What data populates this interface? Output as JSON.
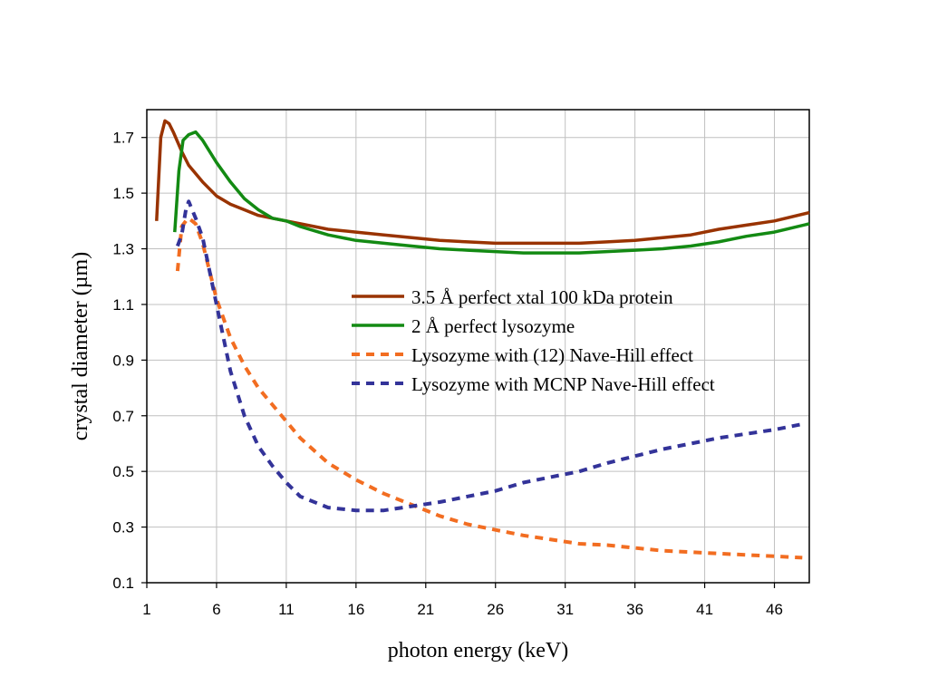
{
  "chart_data": {
    "type": "line",
    "xlabel": "photon energy (keV)",
    "ylabel": "crystal diameter (µm)",
    "xlim": [
      1,
      48.5
    ],
    "ylim": [
      0.1,
      1.8
    ],
    "x_ticks": [
      1,
      6,
      11,
      16,
      21,
      26,
      31,
      36,
      41,
      46
    ],
    "y_ticks": [
      0.1,
      0.3,
      0.5,
      0.7,
      0.9,
      1.1,
      1.3,
      1.5,
      1.7
    ],
    "grid": true,
    "legend_position": "center-right",
    "series": [
      {
        "name": "3.5 Å perfect xtal 100 kDa protein",
        "color": "#993300",
        "style": "solid",
        "x": [
          1.7,
          2.0,
          2.3,
          2.6,
          2.9,
          3.5,
          4.0,
          5.0,
          6.0,
          7.0,
          8.0,
          9.0,
          10.0,
          12.0,
          14.0,
          16.0,
          18.0,
          20.0,
          22.0,
          24.0,
          26.0,
          28.0,
          30.0,
          32.0,
          34.0,
          36.0,
          38.0,
          40.0,
          42.0,
          44.0,
          46.0,
          48.5
        ],
        "y": [
          1.4,
          1.7,
          1.76,
          1.75,
          1.72,
          1.65,
          1.6,
          1.54,
          1.49,
          1.46,
          1.44,
          1.42,
          1.41,
          1.39,
          1.37,
          1.36,
          1.35,
          1.34,
          1.33,
          1.325,
          1.32,
          1.32,
          1.32,
          1.32,
          1.325,
          1.33,
          1.34,
          1.35,
          1.37,
          1.385,
          1.4,
          1.43
        ]
      },
      {
        "name": "2 Å perfect lysozyme",
        "color": "#138a13",
        "style": "solid",
        "x": [
          3.0,
          3.3,
          3.6,
          4.0,
          4.5,
          5.0,
          6.0,
          7.0,
          8.0,
          9.0,
          10.0,
          11.0,
          12.0,
          14.0,
          16.0,
          18.0,
          20.0,
          22.0,
          24.0,
          26.0,
          28.0,
          30.0,
          32.0,
          34.0,
          36.0,
          38.0,
          40.0,
          42.0,
          44.0,
          46.0,
          48.5
        ],
        "y": [
          1.36,
          1.58,
          1.69,
          1.71,
          1.72,
          1.69,
          1.61,
          1.54,
          1.48,
          1.44,
          1.41,
          1.4,
          1.38,
          1.35,
          1.33,
          1.32,
          1.31,
          1.3,
          1.295,
          1.29,
          1.285,
          1.285,
          1.285,
          1.29,
          1.295,
          1.3,
          1.31,
          1.325,
          1.345,
          1.36,
          1.39
        ]
      },
      {
        "name": "Lysozyme with (12) Nave-Hill effect",
        "color": "#f26d21",
        "style": "dashed",
        "x": [
          3.2,
          3.5,
          3.8,
          4.0,
          4.5,
          5.0,
          6.0,
          7.0,
          8.0,
          9.0,
          10.0,
          12.0,
          14.0,
          16.0,
          18.0,
          20.0,
          22.0,
          24.0,
          26.0,
          28.0,
          30.0,
          32.0,
          34.0,
          36.0,
          38.0,
          40.0,
          42.0,
          44.0,
          46.0,
          48.0
        ],
        "y": [
          1.22,
          1.38,
          1.4,
          1.41,
          1.39,
          1.32,
          1.12,
          0.98,
          0.88,
          0.8,
          0.74,
          0.62,
          0.53,
          0.47,
          0.42,
          0.38,
          0.34,
          0.31,
          0.29,
          0.27,
          0.255,
          0.24,
          0.235,
          0.225,
          0.215,
          0.21,
          0.205,
          0.2,
          0.195,
          0.19
        ]
      },
      {
        "name": "Lysozyme with MCNP Nave-Hill effect",
        "color": "#333399",
        "style": "dashed",
        "x": [
          3.2,
          3.5,
          3.8,
          4.0,
          4.5,
          5.0,
          6.0,
          7.0,
          8.0,
          9.0,
          10.0,
          11.0,
          12.0,
          14.0,
          16.0,
          18.0,
          20.0,
          22.0,
          24.0,
          26.0,
          28.0,
          30.0,
          32.0,
          34.0,
          36.0,
          38.0,
          40.0,
          42.0,
          44.0,
          46.0,
          48.0
        ],
        "y": [
          1.31,
          1.35,
          1.44,
          1.47,
          1.41,
          1.34,
          1.1,
          0.86,
          0.7,
          0.59,
          0.52,
          0.46,
          0.41,
          0.37,
          0.36,
          0.36,
          0.375,
          0.39,
          0.41,
          0.43,
          0.46,
          0.48,
          0.5,
          0.53,
          0.555,
          0.58,
          0.6,
          0.62,
          0.635,
          0.65,
          0.67
        ]
      }
    ]
  }
}
